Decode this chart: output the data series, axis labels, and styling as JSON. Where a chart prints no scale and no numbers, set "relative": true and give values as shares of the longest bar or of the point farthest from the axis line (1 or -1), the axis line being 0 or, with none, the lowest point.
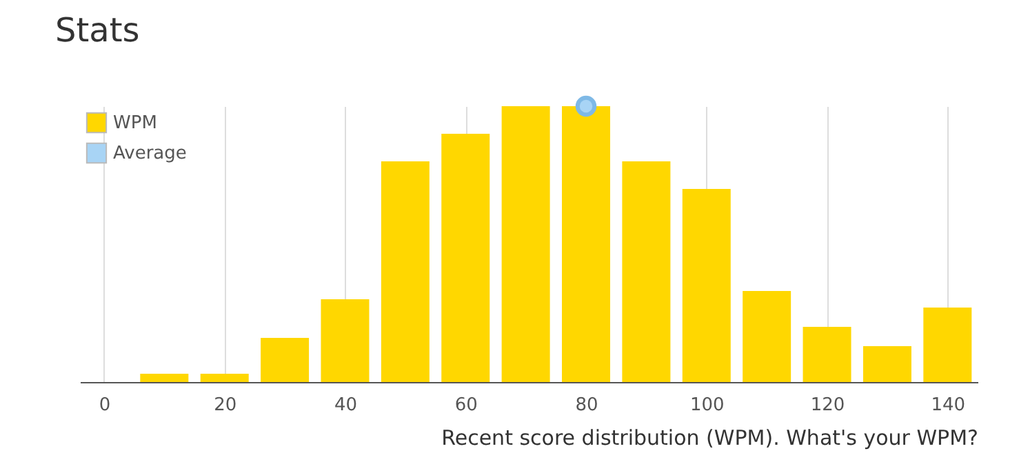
{
  "chart_data": {
    "type": "bar",
    "title": "Stats",
    "xlabel": "Recent score distribution (WPM). What's your WPM?",
    "relative": true,
    "x": [
      10,
      20,
      30,
      40,
      50,
      60,
      70,
      80,
      90,
      100,
      110,
      120,
      130,
      140
    ],
    "series": [
      {
        "name": "WPM",
        "color": "#ffd700",
        "values": [
          0.03,
          0.03,
          0.16,
          0.3,
          0.8,
          0.9,
          1,
          1,
          0.8,
          0.7,
          0.33,
          0.2,
          0.13,
          0.27
        ]
      },
      {
        "name": "Average",
        "type": "scatter",
        "color": "#a8d4f5",
        "x": [
          80
        ],
        "values": [
          1
        ]
      }
    ],
    "xlim": [
      -4,
      145
    ],
    "xticks": [
      0,
      20,
      40,
      60,
      80,
      100,
      120,
      140
    ],
    "grid": "x",
    "legend": "top left",
    "marker": "circle"
  }
}
